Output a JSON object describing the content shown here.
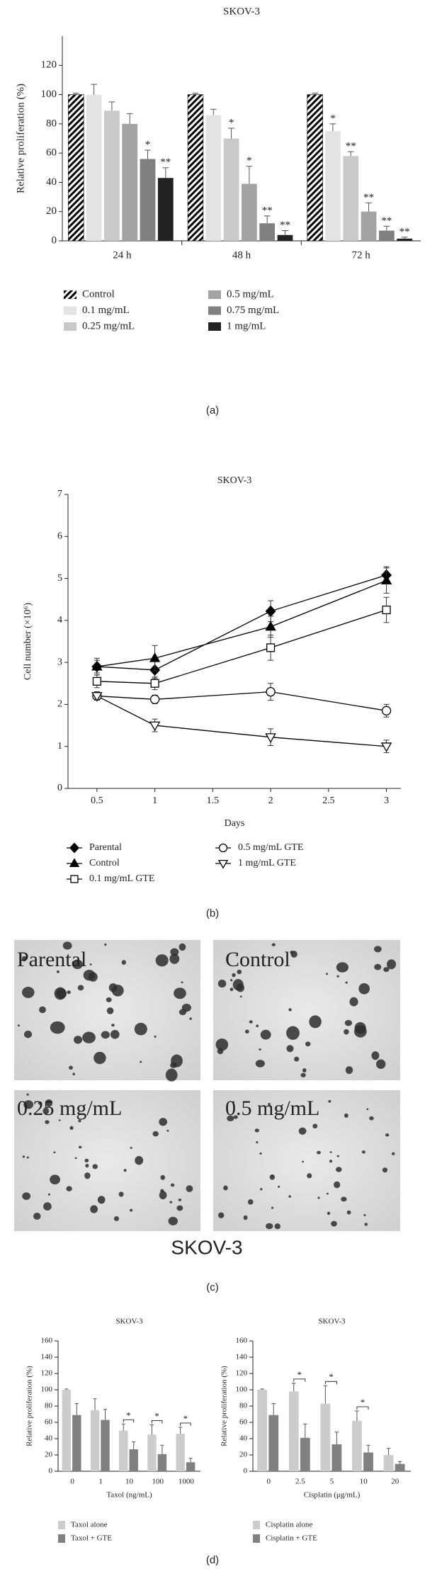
{
  "chart_data": [
    {
      "type": "bar",
      "title": "SKOV-3",
      "y_label": "Relative proliferation (%)",
      "panel_label": "(a)",
      "categories": [
        "24 h",
        "48 h",
        "72 h"
      ],
      "ylim": [
        0,
        140
      ],
      "yticks": [
        0,
        20,
        40,
        60,
        80,
        100,
        120
      ],
      "series": [
        {
          "name": "Control",
          "color": "#000000",
          "fill_pattern": "hatch",
          "values": [
            100,
            100,
            100
          ],
          "errors": [
            1,
            1,
            1
          ],
          "significance": [
            null,
            null,
            null
          ]
        },
        {
          "name": "0.1 mg/mL",
          "color": "#e3e3e3",
          "values": [
            100,
            86,
            75
          ],
          "errors": [
            7,
            4,
            5
          ],
          "significance": [
            null,
            null,
            "*"
          ]
        },
        {
          "name": "0.25 mg/mL",
          "color": "#c9c9c9",
          "values": [
            89,
            70,
            58
          ],
          "errors": [
            6,
            7,
            3
          ],
          "significance": [
            null,
            "*",
            "**"
          ]
        },
        {
          "name": "0.5 mg/mL",
          "color": "#a3a3a3",
          "values": [
            80,
            39,
            20
          ],
          "errors": [
            7,
            12,
            6
          ],
          "significance": [
            null,
            "*",
            "**"
          ]
        },
        {
          "name": "0.75 mg/mL",
          "color": "#808080",
          "values": [
            56,
            12,
            7
          ],
          "errors": [
            6,
            5,
            3
          ],
          "significance": [
            "*",
            "**",
            "**"
          ]
        },
        {
          "name": "1 mg/mL",
          "color": "#222222",
          "values": [
            43,
            4,
            1.5
          ],
          "errors": [
            7,
            3,
            1
          ],
          "significance": [
            "**",
            "**",
            "**"
          ]
        }
      ]
    },
    {
      "type": "line",
      "title": "SKOV-3",
      "x_label": "Days",
      "y_label": "Cell number (×10⁶)",
      "panel_label": "(b)",
      "x": [
        0.5,
        1,
        2,
        3
      ],
      "xlim": [
        0.25,
        3.125
      ],
      "xticks": [
        0.5,
        1,
        1.5,
        2,
        2.5,
        3
      ],
      "ylim": [
        0,
        7
      ],
      "yticks": [
        0,
        1,
        2,
        3,
        4,
        5,
        6,
        7
      ],
      "series": [
        {
          "name": "Parental",
          "color": "#000000",
          "marker": "diamond",
          "marker_fill": "#000000",
          "values": [
            2.9,
            2.82,
            4.22,
            5.08
          ],
          "errors": [
            0.15,
            0.2,
            0.25,
            0.2
          ]
        },
        {
          "name": "Control",
          "color": "#000000",
          "marker": "triangle",
          "marker_fill": "#000000",
          "values": [
            2.9,
            3.1,
            3.85,
            4.95
          ],
          "errors": [
            0.2,
            0.3,
            0.25,
            0.3
          ]
        },
        {
          "name": "0.1 mg/mL GTE",
          "color": "#000000",
          "marker": "square",
          "marker_fill": "#ffffff",
          "values": [
            2.55,
            2.5,
            3.35,
            4.25
          ],
          "errors": [
            0.15,
            0.15,
            0.3,
            0.3
          ]
        },
        {
          "name": "0.5 mg/mL GTE",
          "color": "#000000",
          "marker": "circle",
          "marker_fill": "#ffffff",
          "values": [
            2.2,
            2.12,
            2.3,
            1.85
          ],
          "errors": [
            0.1,
            0.1,
            0.2,
            0.15
          ]
        },
        {
          "name": "1 mg/mL GTE",
          "color": "#000000",
          "marker": "triangle-down",
          "marker_fill": "#ffffff",
          "values": [
            2.2,
            1.5,
            1.22,
            1.0
          ],
          "errors": [
            0.1,
            0.15,
            0.2,
            0.15
          ]
        }
      ]
    },
    {
      "type": "bar",
      "title": "SKOV-3",
      "x_label": "Taxol (ng/mL)",
      "y_label": "Relative proliferation (%)",
      "panel_label": "(d)",
      "categories": [
        "0",
        "1",
        "10",
        "100",
        "1000"
      ],
      "ylim": [
        0,
        160
      ],
      "yticks": [
        0,
        20,
        40,
        60,
        80,
        100,
        120,
        140,
        160
      ],
      "significance": [
        null,
        null,
        "*",
        "*",
        "*"
      ],
      "series": [
        {
          "name": "Taxol alone",
          "color": "#cccccc",
          "values": [
            100,
            75,
            50,
            45,
            46
          ],
          "errors": [
            1,
            14,
            8,
            12,
            8
          ]
        },
        {
          "name": "Taxol + GTE",
          "color": "#808080",
          "values": [
            69,
            63,
            27,
            21,
            11
          ],
          "errors": [
            14,
            13,
            9,
            11,
            5
          ]
        }
      ]
    },
    {
      "type": "bar",
      "title": "SKOV-3",
      "x_label": "Cisplatin (μg/mL)",
      "y_label": "Relative proliferation (%)",
      "categories": [
        "0",
        "2.5",
        "5",
        "10",
        "20"
      ],
      "ylim": [
        0,
        160
      ],
      "yticks": [
        0,
        20,
        40,
        60,
        80,
        100,
        120,
        140,
        160
      ],
      "significance": [
        null,
        "*",
        "*",
        "*",
        null
      ],
      "series": [
        {
          "name": "Cisplatin alone",
          "color": "#cccccc",
          "values": [
            100,
            98,
            83,
            62,
            20
          ],
          "errors": [
            1,
            10,
            22,
            12,
            8
          ]
        },
        {
          "name": "Cisplatin + GTE",
          "color": "#808080",
          "values": [
            69,
            41,
            33,
            23,
            9
          ],
          "errors": [
            14,
            17,
            15,
            9,
            3
          ]
        }
      ]
    }
  ],
  "micrographs": {
    "labels": [
      "Parental",
      "Control",
      "0.25 mg/mL",
      "0.5 mg/mL"
    ],
    "caption": "SKOV-3",
    "panel_label": "(c)"
  }
}
